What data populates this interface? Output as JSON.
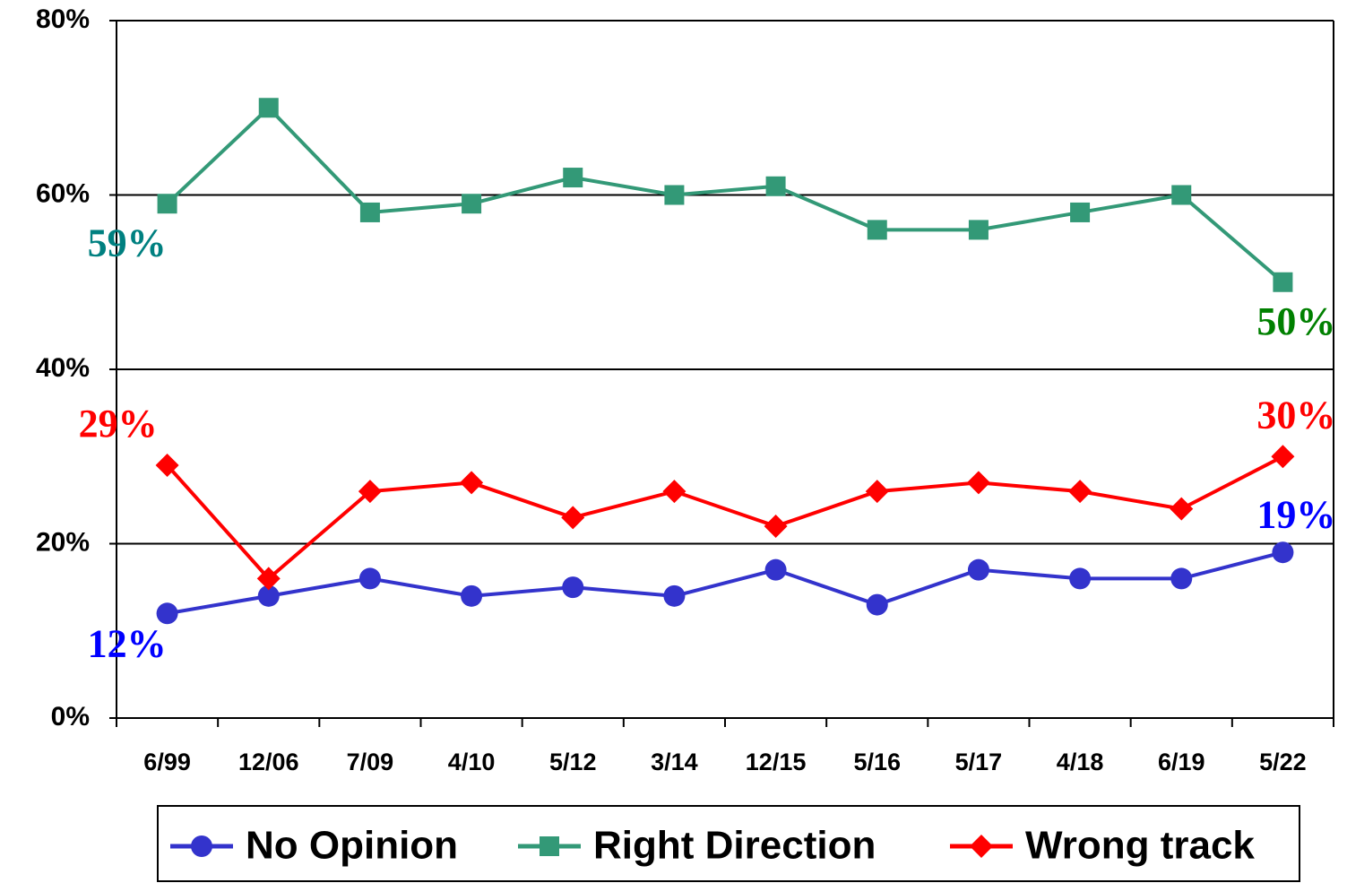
{
  "chart_data": {
    "type": "line",
    "categories": [
      "6/99",
      "12/06",
      "7/09",
      "4/10",
      "5/12",
      "3/14",
      "12/15",
      "5/16",
      "5/17",
      "4/18",
      "6/19",
      "5/22"
    ],
    "series": [
      {
        "name": "No Opinion",
        "color": "#3333cc",
        "marker": "circle",
        "values": [
          12,
          14,
          16,
          14,
          15,
          14,
          17,
          13,
          17,
          16,
          16,
          19
        ],
        "value_labels": [
          "12%",
          null,
          null,
          null,
          null,
          null,
          null,
          null,
          null,
          null,
          null,
          "19%"
        ],
        "value_label_colors": [
          "#0000ff",
          null,
          null,
          null,
          null,
          null,
          null,
          null,
          null,
          null,
          null,
          "#0000ff"
        ]
      },
      {
        "name": "Right Direction",
        "color": "#339977",
        "marker": "square",
        "values": [
          59,
          70,
          58,
          59,
          62,
          60,
          61,
          56,
          56,
          58,
          60,
          50
        ],
        "value_labels": [
          "59%",
          null,
          null,
          null,
          null,
          null,
          null,
          null,
          null,
          null,
          null,
          "50%"
        ],
        "value_label_colors": [
          "#008080",
          null,
          null,
          null,
          null,
          null,
          null,
          null,
          null,
          null,
          null,
          "#008000"
        ]
      },
      {
        "name": "Wrong track",
        "color": "#ff0000",
        "marker": "diamond",
        "values": [
          29,
          16,
          26,
          27,
          23,
          26,
          22,
          26,
          27,
          26,
          24,
          30
        ],
        "value_labels": [
          "29%",
          null,
          null,
          null,
          null,
          null,
          null,
          null,
          null,
          null,
          null,
          "30%"
        ],
        "value_label_colors": [
          "#ff0000",
          null,
          null,
          null,
          null,
          null,
          null,
          null,
          null,
          null,
          null,
          "#ff0000"
        ]
      }
    ],
    "ylim": [
      0,
      80
    ],
    "yticks": [
      {
        "value": 0,
        "label": "0%"
      },
      {
        "value": 20,
        "label": "20%"
      },
      {
        "value": 40,
        "label": "40%"
      },
      {
        "value": 60,
        "label": "60%"
      },
      {
        "value": 80,
        "label": "80%"
      }
    ],
    "grid": true,
    "legend": "bottom"
  }
}
